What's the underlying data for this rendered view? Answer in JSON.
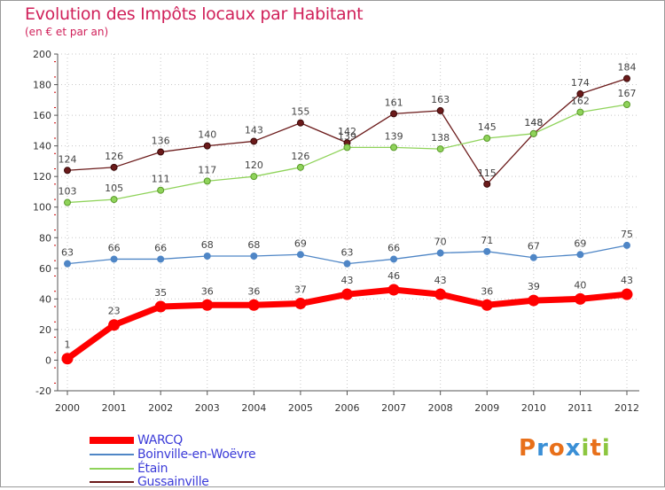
{
  "title": "Evolution des Impôts locaux par Habitant",
  "subtitle": "(en € et par an)",
  "logo": {
    "text": "Proxiti",
    "letters": [
      "P",
      "r",
      "o",
      "x",
      "i",
      "t",
      "i"
    ],
    "colors": [
      "#e8701a",
      "#3a8fd6",
      "#e8701a",
      "#3a8fd6",
      "#8cc63f",
      "#e8701a",
      "#8cc63f"
    ]
  },
  "chart_data": {
    "type": "line",
    "title": "Evolution des Impôts locaux par Habitant",
    "subtitle": "(en € et par an)",
    "xlabel": "",
    "ylabel": "",
    "categories": [
      "2000",
      "2001",
      "2002",
      "2003",
      "2004",
      "2005",
      "2006",
      "2007",
      "2008",
      "2009",
      "2010",
      "2011",
      "2012"
    ],
    "ylim": [
      -20,
      200
    ],
    "yticks": [
      "-20",
      "0",
      "20",
      "40",
      "60",
      "80",
      "100",
      "120",
      "140",
      "160",
      "180",
      "200"
    ],
    "legend_position": "bottom-left",
    "series": [
      {
        "name": "WARCQ",
        "color": "#ff0000",
        "values": [
          1,
          23,
          35,
          36,
          36,
          37,
          43,
          46,
          43,
          36,
          39,
          40,
          43
        ],
        "labels": [
          "1",
          "23",
          "35",
          "36",
          "36",
          "37",
          "43",
          "46",
          "43",
          "36",
          "39",
          "40",
          "43"
        ]
      },
      {
        "name": "Boinville-en-Woëvre",
        "color": "#4f86c6",
        "values": [
          63,
          66,
          66,
          68,
          68,
          69,
          63,
          66,
          70,
          71,
          67,
          69,
          75
        ],
        "labels": [
          "63",
          "66",
          "66",
          "68",
          "68",
          "69",
          "63",
          "66",
          "70",
          "71",
          "67",
          "69",
          "75"
        ]
      },
      {
        "name": "Étain",
        "color": "#8fd35a",
        "values": [
          103,
          105,
          111,
          117,
          120,
          126,
          139,
          139,
          138,
          145,
          148,
          162,
          167
        ],
        "labels": [
          "103",
          "105",
          "111",
          "117",
          "120",
          "126",
          "139",
          "139",
          "138",
          "145",
          "148",
          "162",
          "167"
        ]
      },
      {
        "name": "Gussainville",
        "color": "#6b1a1a",
        "values": [
          124,
          126,
          136,
          140,
          143,
          155,
          142,
          161,
          163,
          115,
          148,
          174,
          184
        ],
        "labels": [
          "124",
          "126",
          "136",
          "140",
          "143",
          "155",
          "142",
          "161",
          "163",
          "115",
          "148",
          "174",
          "184"
        ]
      }
    ]
  }
}
